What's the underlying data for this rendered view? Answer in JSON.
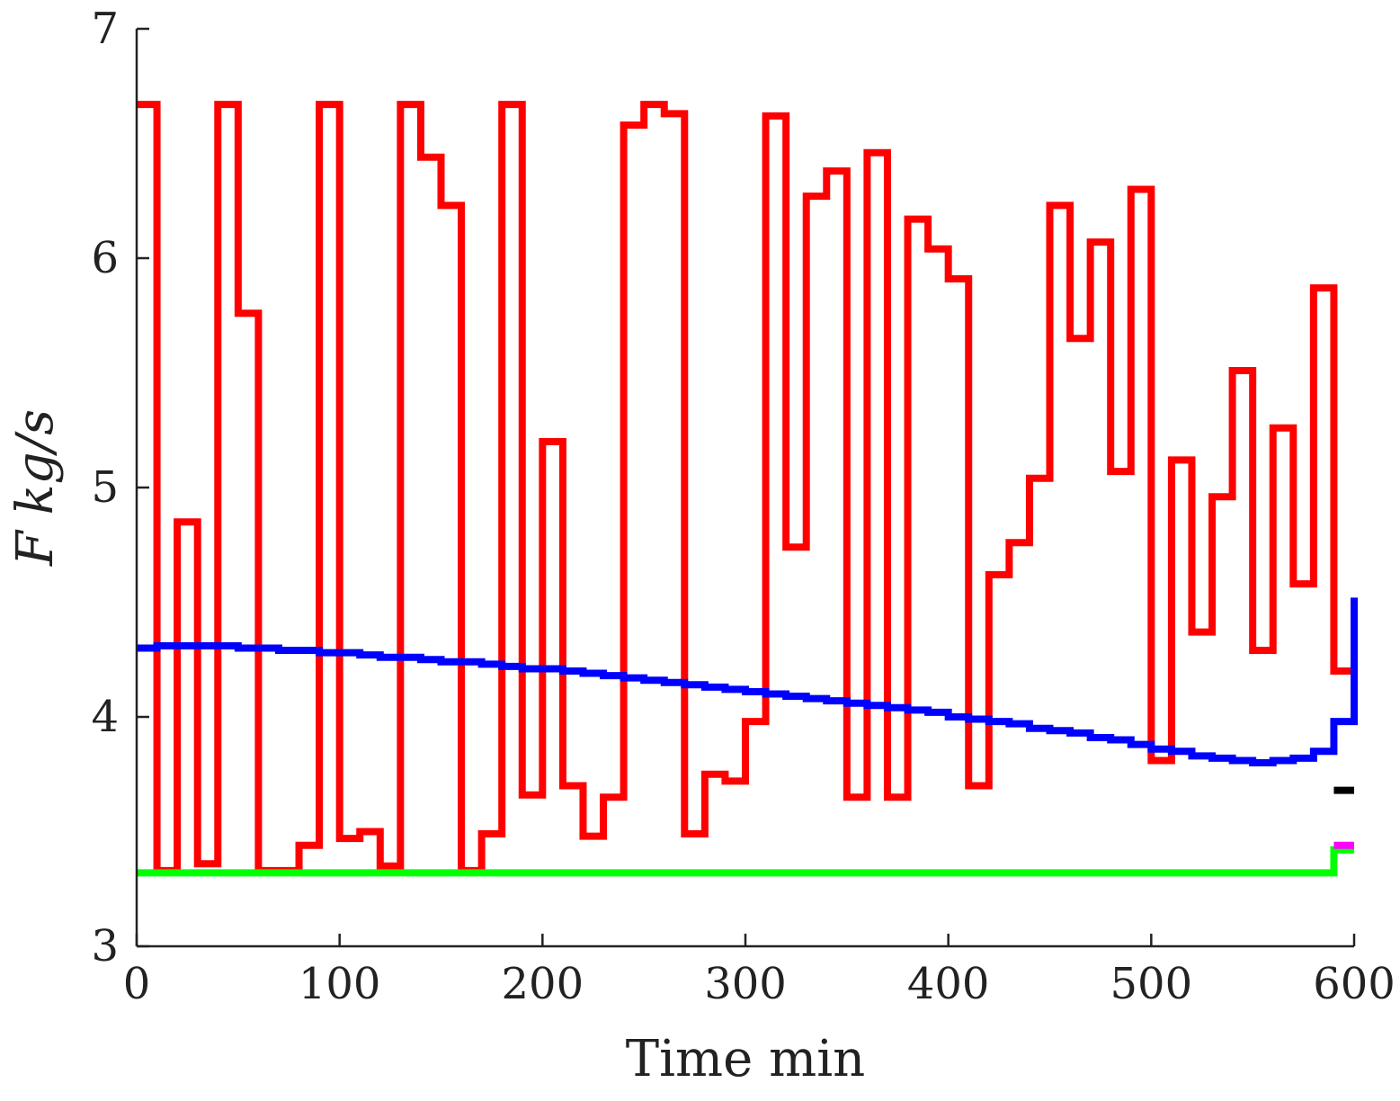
{
  "chart_data": {
    "type": "line",
    "step": true,
    "xlabel": "Time min",
    "ylabel": "F kg/s",
    "xlim": [
      0,
      600
    ],
    "ylim": [
      3,
      7
    ],
    "xticks": [
      0,
      100,
      200,
      300,
      400,
      500,
      600
    ],
    "yticks": [
      3,
      4,
      5,
      6,
      7
    ],
    "grid": false,
    "legend": "none",
    "series": [
      {
        "color": "#ff0000",
        "x": [
          0,
          10,
          20,
          30,
          40,
          50,
          60,
          70,
          80,
          90,
          100,
          110,
          120,
          130,
          140,
          150,
          160,
          170,
          180,
          190,
          200,
          210,
          220,
          230,
          240,
          250,
          260,
          270,
          280,
          290,
          300,
          310,
          320,
          330,
          340,
          350,
          360,
          370,
          380,
          390,
          400,
          410,
          420,
          430,
          440,
          450,
          460,
          470,
          480,
          490,
          500,
          510,
          520,
          530,
          540,
          550,
          560,
          570,
          580,
          590,
          600
        ],
        "y": [
          6.67,
          3.33,
          4.85,
          3.36,
          6.67,
          5.76,
          3.33,
          3.33,
          3.44,
          6.67,
          3.47,
          3.5,
          3.35,
          6.67,
          6.44,
          6.23,
          3.33,
          3.49,
          6.67,
          3.66,
          5.2,
          3.7,
          3.48,
          3.65,
          6.58,
          6.67,
          6.63,
          3.49,
          3.75,
          3.72,
          3.98,
          6.62,
          4.74,
          6.27,
          6.38,
          3.65,
          6.46,
          3.65,
          6.17,
          6.04,
          5.91,
          3.7,
          4.62,
          4.76,
          5.04,
          6.23,
          5.65,
          6.07,
          5.07,
          6.3,
          3.81,
          5.12,
          4.37,
          4.96,
          5.51,
          4.29,
          5.26,
          4.58,
          5.87,
          4.2,
          4.2
        ]
      },
      {
        "color": "#0000ff",
        "x": [
          0,
          10,
          20,
          30,
          40,
          50,
          60,
          70,
          80,
          90,
          100,
          110,
          120,
          130,
          140,
          150,
          160,
          170,
          180,
          190,
          200,
          210,
          220,
          230,
          240,
          250,
          260,
          270,
          280,
          290,
          300,
          310,
          320,
          330,
          340,
          350,
          360,
          370,
          380,
          390,
          400,
          410,
          420,
          430,
          440,
          450,
          460,
          470,
          480,
          490,
          500,
          510,
          520,
          530,
          540,
          550,
          560,
          570,
          580,
          590,
          600
        ],
        "y": [
          4.3,
          4.31,
          4.31,
          4.31,
          4.31,
          4.3,
          4.3,
          4.29,
          4.29,
          4.28,
          4.28,
          4.27,
          4.26,
          4.26,
          4.25,
          4.24,
          4.24,
          4.23,
          4.22,
          4.21,
          4.21,
          4.2,
          4.19,
          4.18,
          4.17,
          4.16,
          4.15,
          4.14,
          4.13,
          4.12,
          4.11,
          4.1,
          4.09,
          4.08,
          4.07,
          4.06,
          4.05,
          4.04,
          4.03,
          4.02,
          4.0,
          3.99,
          3.98,
          3.97,
          3.95,
          3.94,
          3.93,
          3.91,
          3.9,
          3.88,
          3.86,
          3.85,
          3.83,
          3.82,
          3.81,
          3.8,
          3.81,
          3.82,
          3.85,
          3.98,
          4.52
        ]
      },
      {
        "color": "#00ff00",
        "x": [
          0,
          590,
          600
        ],
        "y": [
          3.32,
          3.42,
          3.42
        ]
      },
      {
        "color": "#ff00ff",
        "x": [
          590,
          600
        ],
        "y": [
          3.44,
          3.44
        ]
      },
      {
        "color": "#000000",
        "x": [
          590,
          600
        ],
        "y": [
          3.68,
          3.68
        ]
      }
    ]
  }
}
